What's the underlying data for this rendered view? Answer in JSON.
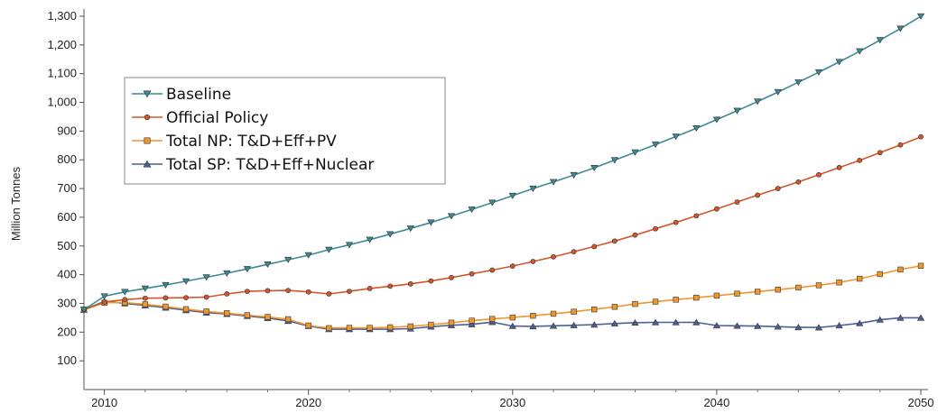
{
  "chart_data": {
    "type": "line",
    "ylabel": "Million Tonnes",
    "xlabel": "",
    "xlim": [
      2009,
      2050
    ],
    "ylim": [
      0,
      1340
    ],
    "grid": false,
    "legend_position": "top-left",
    "x_ticks": [
      "2010",
      "2020",
      "2030",
      "2040",
      "2050"
    ],
    "y_ticks": [
      "100",
      "200",
      "300",
      "400",
      "500",
      "600",
      "700",
      "800",
      "900",
      "1,000",
      "1,100",
      "1,200",
      "1,300"
    ],
    "x": [
      2009,
      2010,
      2011,
      2012,
      2013,
      2014,
      2015,
      2016,
      2017,
      2018,
      2019,
      2020,
      2021,
      2022,
      2023,
      2024,
      2025,
      2026,
      2027,
      2028,
      2029,
      2030,
      2031,
      2032,
      2033,
      2034,
      2035,
      2036,
      2037,
      2038,
      2039,
      2040,
      2041,
      2042,
      2043,
      2044,
      2045,
      2046,
      2047,
      2048,
      2049,
      2050
    ],
    "series": [
      {
        "name": "Baseline",
        "color": "#3d8a94",
        "marker": "triangle-down",
        "values": [
          278,
          325,
          340,
          352,
          364,
          377,
          391,
          405,
          420,
          436,
          452,
          468,
          487,
          504,
          522,
          541,
          561,
          582,
          604,
          627,
          651,
          675,
          700,
          723,
          747,
          772,
          799,
          826,
          853,
          881,
          910,
          940,
          971,
          1003,
          1036,
          1070,
          1105,
          1141,
          1178,
          1217,
          1257,
          1300
        ]
      },
      {
        "name": "Official Policy",
        "color": "#d4552a",
        "marker": "circle",
        "values": [
          278,
          305,
          313,
          318,
          319,
          320,
          322,
          333,
          342,
          344,
          345,
          340,
          333,
          342,
          352,
          360,
          368,
          378,
          390,
          403,
          416,
          430,
          446,
          462,
          480,
          498,
          517,
          538,
          560,
          582,
          605,
          629,
          653,
          677,
          700,
          723,
          748,
          773,
          798,
          825,
          852,
          880
        ]
      },
      {
        "name": "Total NP: T&D+Eff+PV",
        "color": "#f0962f",
        "marker": "square",
        "values": [
          278,
          302,
          303,
          297,
          289,
          280,
          272,
          266,
          259,
          253,
          245,
          223,
          214,
          215,
          215,
          217,
          220,
          226,
          233,
          240,
          246,
          251,
          257,
          264,
          271,
          279,
          288,
          298,
          306,
          313,
          320,
          327,
          334,
          341,
          348,
          355,
          363,
          373,
          386,
          402,
          418,
          431
        ]
      },
      {
        "name": "Total SP: T&D+Eff+Nuclear",
        "color": "#4b5f94",
        "marker": "triangle-up",
        "values": [
          278,
          307,
          300,
          293,
          285,
          276,
          268,
          263,
          256,
          249,
          239,
          221,
          210,
          210,
          210,
          210,
          212,
          219,
          224,
          227,
          235,
          221,
          220,
          222,
          224,
          226,
          230,
          233,
          234,
          234,
          234,
          223,
          222,
          221,
          219,
          217,
          216,
          223,
          231,
          243,
          250,
          250
        ]
      }
    ]
  }
}
